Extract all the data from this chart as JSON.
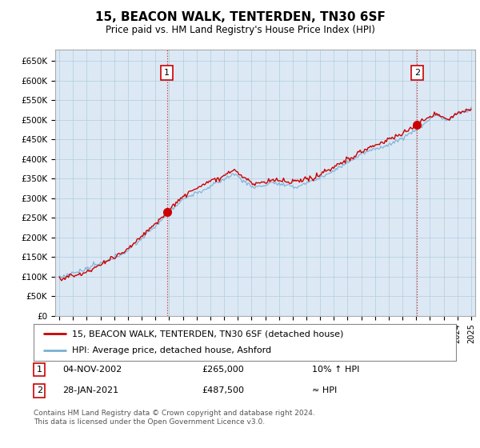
{
  "title": "15, BEACON WALK, TENTERDEN, TN30 6SF",
  "subtitle": "Price paid vs. HM Land Registry's House Price Index (HPI)",
  "legend_line1": "15, BEACON WALK, TENTERDEN, TN30 6SF (detached house)",
  "legend_line2": "HPI: Average price, detached house, Ashford",
  "annotation1_date": "04-NOV-2002",
  "annotation1_price": "£265,000",
  "annotation1_hpi": "10% ↑ HPI",
  "annotation2_date": "28-JAN-2021",
  "annotation2_price": "£487,500",
  "annotation2_hpi": "≈ HPI",
  "footer": "Contains HM Land Registry data © Crown copyright and database right 2024.\nThis data is licensed under the Open Government Licence v3.0.",
  "red_color": "#cc0000",
  "blue_color": "#7ab0d4",
  "plot_bg_color": "#dce9f5",
  "background_color": "#ffffff",
  "grid_color": "#b8cfe0",
  "ylim": [
    0,
    680000
  ],
  "yticks": [
    0,
    50000,
    100000,
    150000,
    200000,
    250000,
    300000,
    350000,
    400000,
    450000,
    500000,
    550000,
    600000,
    650000
  ],
  "sale1_x": 2002.84,
  "sale1_y": 265000,
  "sale2_x": 2021.07,
  "sale2_y": 487500,
  "xlim_left": 1994.7,
  "xlim_right": 2025.3
}
